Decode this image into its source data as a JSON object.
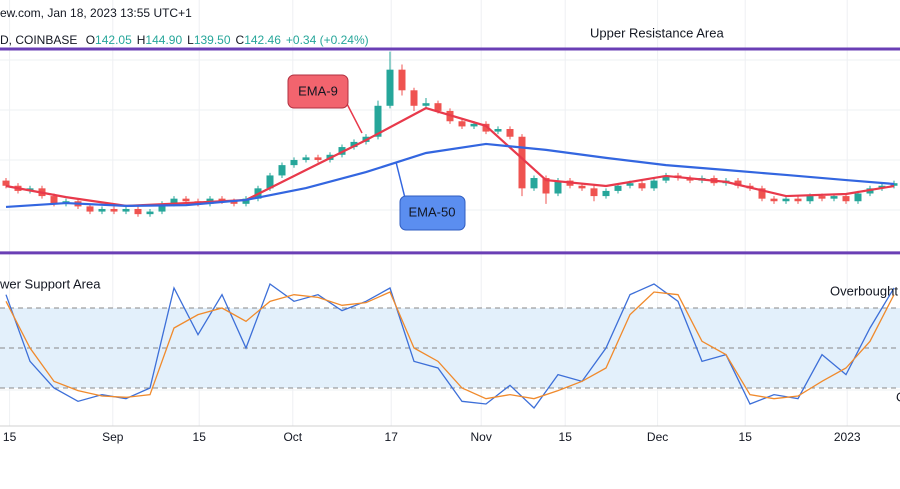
{
  "header": {
    "source": "ew.com, Jan 18, 2023 13:55 UTC+1",
    "symbol": "D, COINBASE",
    "ohlc": [
      {
        "key": "O",
        "value": "142.05"
      },
      {
        "key": "H",
        "value": "144.90"
      },
      {
        "key": "L",
        "value": "139.50"
      },
      {
        "key": "C",
        "value": "142.46"
      }
    ],
    "change": "+0.34 (+0.24%)"
  },
  "chart_data": [
    {
      "type": "candlestick",
      "xlim": [
        -0.5,
        74.5
      ],
      "ylim": [
        113,
        213
      ],
      "up_color": "#26a69a",
      "down_color": "#ef5350",
      "resistance": 194,
      "support": 115,
      "level_color": "#6a3fb5",
      "annotations": [
        "Upper Resistance Area",
        "EMA-9",
        "EMA-50"
      ],
      "open": [
        143,
        141,
        139,
        140,
        137,
        134,
        135,
        133,
        131,
        132,
        131,
        132,
        130,
        131,
        134,
        136,
        135,
        134,
        136,
        135,
        134,
        136,
        140,
        145,
        149,
        151,
        152,
        151,
        153,
        156,
        158,
        160,
        172,
        186,
        178,
        172,
        173,
        170,
        166,
        164,
        165,
        162,
        163,
        160,
        140,
        144,
        138,
        143,
        141,
        140,
        137,
        139,
        141,
        142,
        140,
        143,
        145,
        144,
        143,
        144,
        142,
        143,
        141,
        140,
        136,
        135,
        136,
        135,
        137,
        136,
        137,
        135,
        138,
        140,
        141
      ],
      "high": [
        144,
        142,
        141,
        141,
        138,
        136,
        136,
        134,
        133,
        133,
        133,
        133,
        132,
        135,
        137,
        137,
        136,
        137,
        137,
        136,
        137,
        141,
        146,
        150,
        152,
        153,
        153,
        154,
        157,
        159,
        161,
        174,
        193,
        188,
        179,
        175,
        174,
        171,
        167,
        166,
        166,
        164,
        164,
        161,
        145,
        145,
        144,
        144,
        142,
        141,
        140,
        142,
        143,
        143,
        144,
        146,
        146,
        145,
        145,
        145,
        144,
        144,
        142,
        141,
        137,
        137,
        137,
        138,
        138,
        138,
        138,
        139,
        141,
        142,
        143
      ],
      "low": [
        140,
        138,
        138,
        136,
        133,
        133,
        132,
        130,
        130,
        130,
        130,
        129,
        129,
        130,
        133,
        134,
        133,
        133,
        134,
        133,
        133,
        135,
        139,
        144,
        148,
        150,
        150,
        150,
        152,
        155,
        157,
        159,
        171,
        176,
        170,
        171,
        169,
        165,
        163,
        163,
        161,
        161,
        159,
        137,
        139,
        134,
        137,
        140,
        139,
        135,
        136,
        138,
        140,
        139,
        139,
        142,
        143,
        142,
        142,
        141,
        141,
        140,
        139,
        135,
        134,
        134,
        134,
        134,
        135,
        135,
        134,
        134,
        137,
        139,
        140
      ],
      "close": [
        141,
        139,
        140,
        137,
        134,
        135,
        133,
        131,
        132,
        131,
        132,
        130,
        131,
        134,
        136,
        135,
        134,
        136,
        135,
        134,
        136,
        140,
        145,
        149,
        151,
        152,
        151,
        153,
        156,
        158,
        160,
        172,
        186,
        178,
        172,
        173,
        170,
        166,
        164,
        165,
        162,
        163,
        160,
        140,
        144,
        138,
        143,
        141,
        140,
        137,
        139,
        141,
        142,
        140,
        143,
        145,
        144,
        143,
        144,
        142,
        143,
        141,
        140,
        136,
        135,
        136,
        135,
        137,
        136,
        137,
        135,
        138,
        140,
        141,
        142
      ],
      "series": [
        {
          "name": "EMA-9",
          "color": "#e8394b",
          "x": [
            0,
            5,
            10,
            15,
            20,
            25,
            30,
            35,
            40,
            45,
            50,
            55,
            60,
            65,
            70,
            74
          ],
          "values": [
            140.9,
            136.6,
            133.2,
            134.3,
            135.5,
            147.1,
            158.7,
            171.1,
            164.2,
            143.2,
            140.9,
            144.8,
            142.5,
            137.0,
            137.8,
            140.9
          ]
        },
        {
          "name": "EMA-50",
          "color": "#3366e0",
          "x": [
            0,
            5,
            10,
            15,
            20,
            25,
            30,
            35,
            40,
            45,
            50,
            55,
            60,
            65,
            70,
            74
          ],
          "values": [
            132.8,
            134.3,
            133.2,
            133.5,
            135.5,
            140.1,
            146.3,
            153.7,
            157.2,
            154.9,
            151.8,
            149.0,
            147.1,
            145.2,
            143.2,
            141.7
          ]
        }
      ]
    },
    {
      "type": "line",
      "xlim": [
        -0.5,
        74.5
      ],
      "ylim": [
        -10,
        110
      ],
      "levels": [
        20,
        50,
        80
      ],
      "band_color": "#e3f0fb",
      "annotations": [
        "wer Support Area",
        "Overbought",
        "O"
      ],
      "xticks": [
        {
          "value": 0.3,
          "label": "15"
        },
        {
          "value": 8.9,
          "label": "Sep"
        },
        {
          "value": 16.1,
          "label": "15"
        },
        {
          "value": 23.9,
          "label": "Oct"
        },
        {
          "value": 32.1,
          "label": "17"
        },
        {
          "value": 39.6,
          "label": "Nov"
        },
        {
          "value": 46.6,
          "label": "15"
        },
        {
          "value": 54.3,
          "label": "Dec"
        },
        {
          "value": 61.6,
          "label": "15"
        },
        {
          "value": 70.1,
          "label": "2023"
        }
      ],
      "series": [
        {
          "color": "#3d6fd8",
          "x": [
            0,
            2,
            4,
            6,
            8,
            10,
            12,
            14,
            16,
            18,
            20,
            22,
            24,
            26,
            28,
            30,
            32,
            34,
            36,
            38,
            40,
            42,
            44,
            46,
            48,
            50,
            52,
            54,
            56,
            58,
            60,
            62,
            64,
            66,
            68,
            70,
            72,
            74
          ],
          "values": [
            90,
            40,
            20,
            10,
            15,
            12,
            20,
            95,
            60,
            90,
            50,
            98,
            85,
            90,
            78,
            85,
            95,
            40,
            35,
            10,
            8,
            22,
            5,
            30,
            25,
            50,
            90,
            98,
            85,
            40,
            45,
            8,
            15,
            12,
            45,
            30,
            65,
            95
          ]
        },
        {
          "color": "#f08a2c",
          "x": [
            0,
            2,
            4,
            6,
            8,
            10,
            12,
            14,
            16,
            18,
            20,
            22,
            24,
            26,
            28,
            30,
            32,
            34,
            36,
            38,
            40,
            42,
            44,
            46,
            48,
            50,
            52,
            54,
            56,
            58,
            60,
            62,
            64,
            66,
            68,
            70,
            72,
            74
          ],
          "values": [
            85,
            50,
            25,
            18,
            14,
            13,
            15,
            65,
            75,
            80,
            70,
            85,
            90,
            88,
            82,
            84,
            92,
            50,
            40,
            20,
            12,
            15,
            12,
            18,
            25,
            35,
            75,
            92,
            90,
            55,
            45,
            15,
            12,
            14,
            25,
            35,
            55,
            90
          ]
        }
      ]
    }
  ]
}
